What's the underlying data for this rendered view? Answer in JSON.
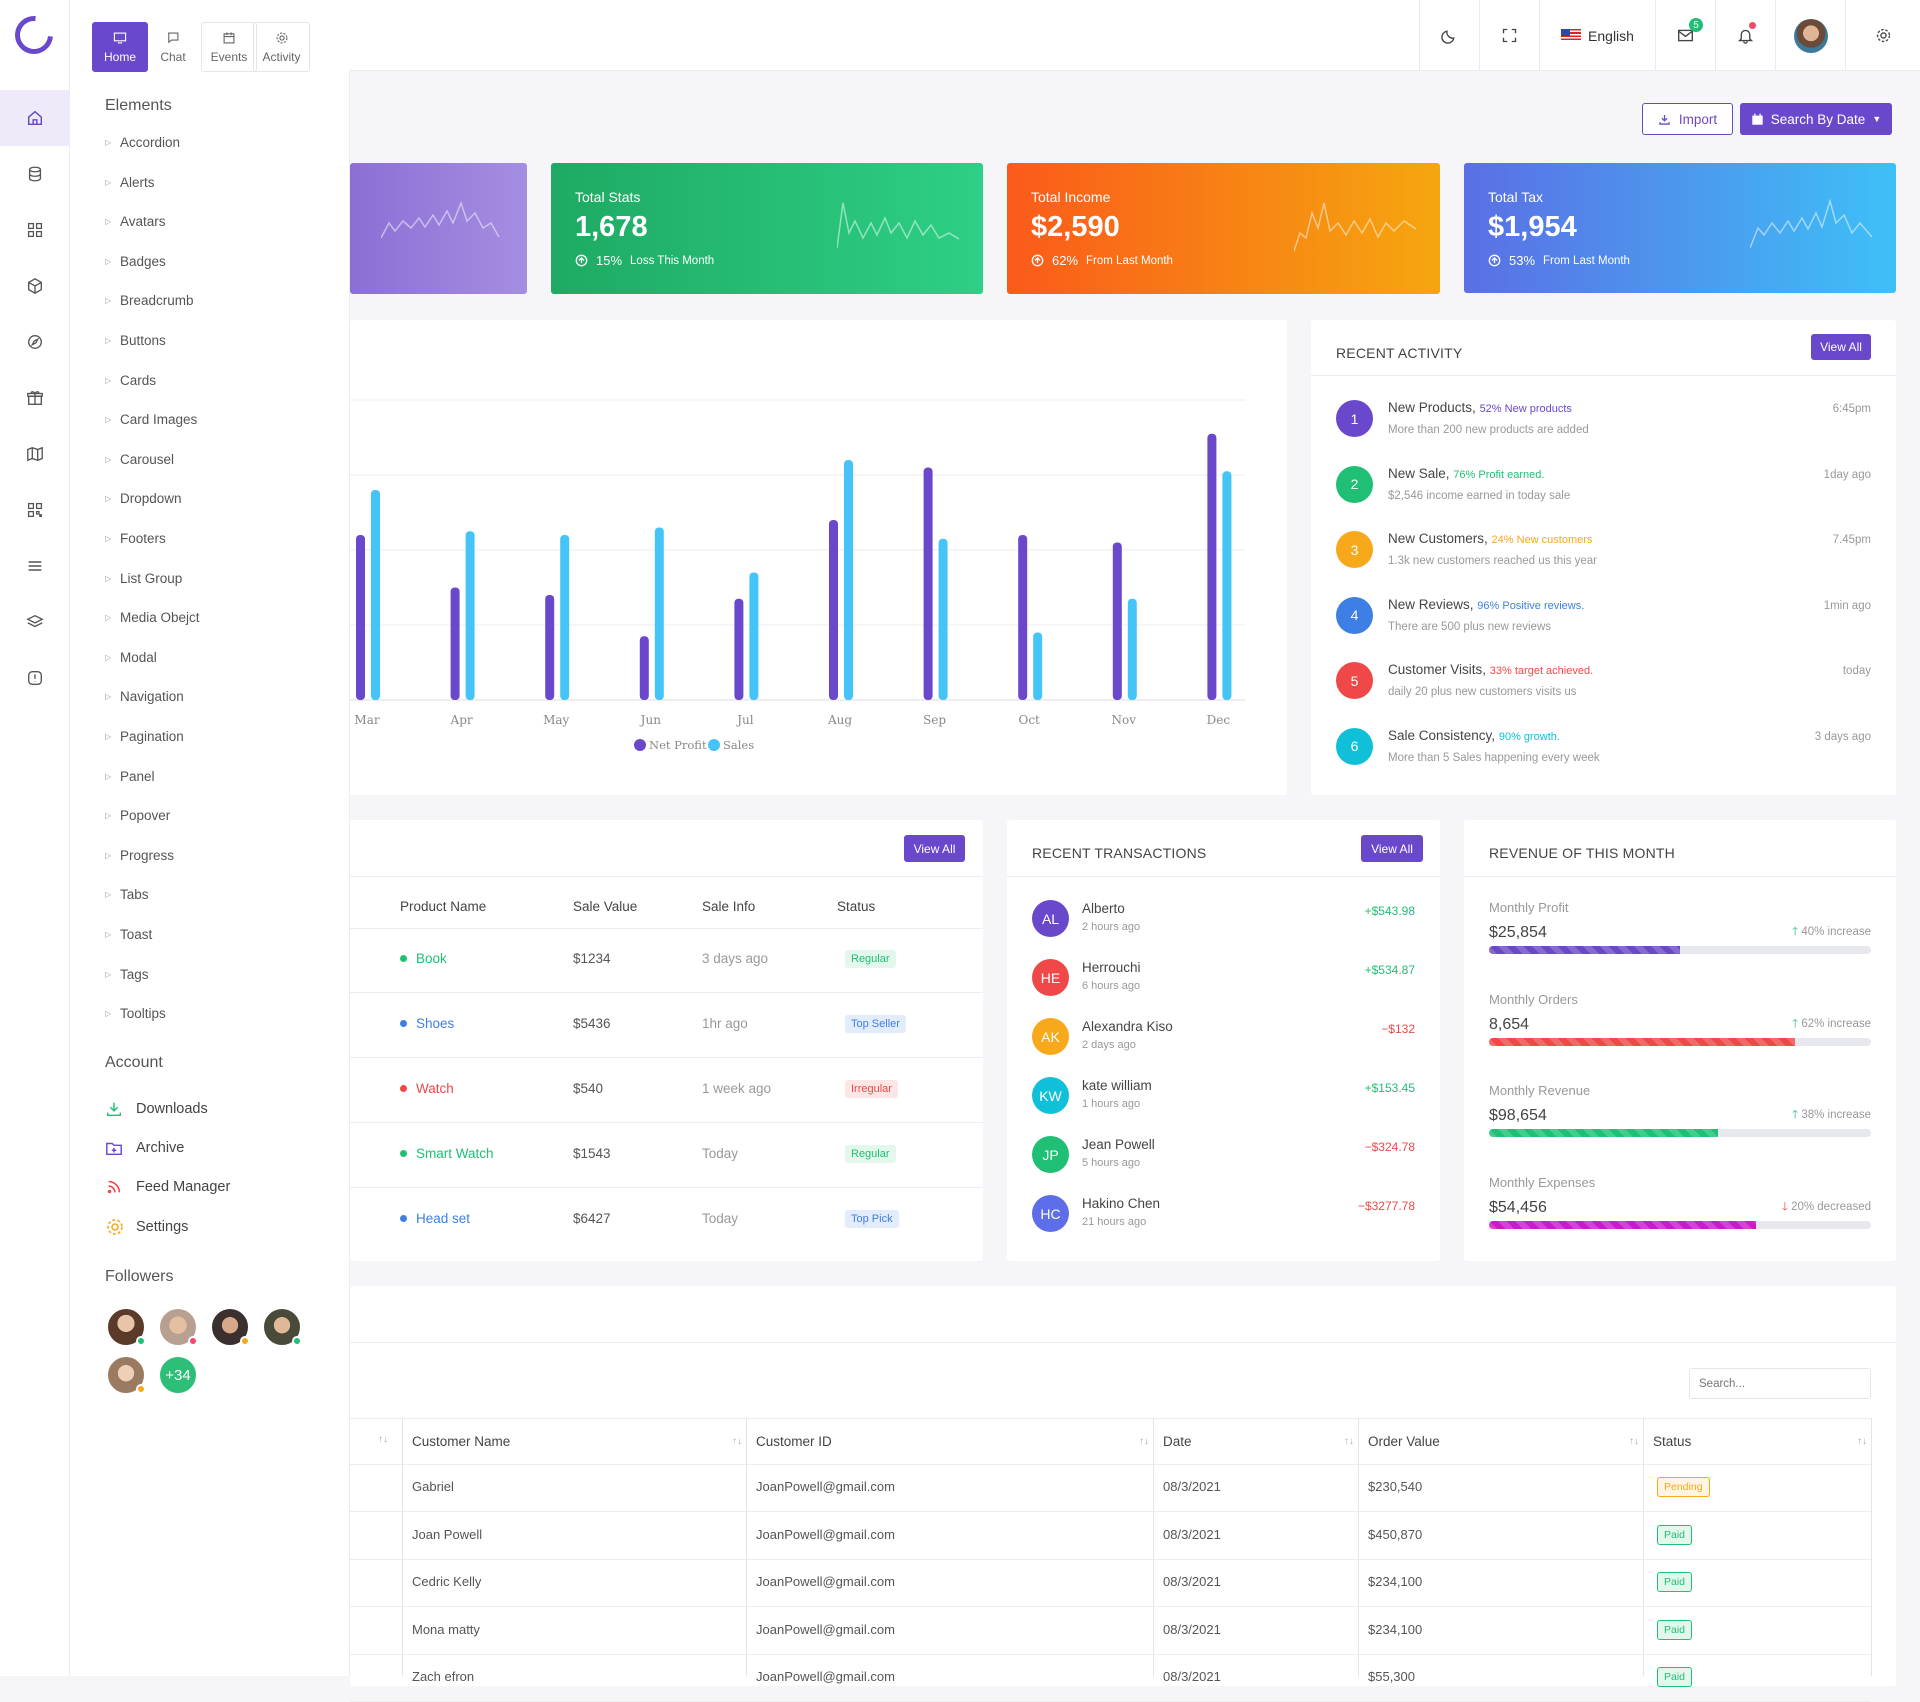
{
  "topbar": {
    "language": "English",
    "mail_count": "5"
  },
  "sidebar": {
    "tabs": [
      {
        "label": "Home"
      },
      {
        "label": "Chat"
      },
      {
        "label": "Events"
      },
      {
        "label": "Activity"
      }
    ],
    "elements_title": "Elements",
    "elements": [
      "Accordion",
      "Alerts",
      "Avatars",
      "Badges",
      "Breadcrumb",
      "Buttons",
      "Cards",
      "Card Images",
      "Carousel",
      "Dropdown",
      "Footers",
      "List Group",
      "Media Obejct",
      "Modal",
      "Navigation",
      "Pagination",
      "Panel",
      "Popover",
      "Progress",
      "Tabs",
      "Toast",
      "Tags",
      "Tooltips"
    ],
    "account_title": "Account",
    "account": [
      "Downloads",
      "Archive",
      "Feed Manager",
      "Settings"
    ],
    "followers_title": "Followers",
    "followers_more": "+34"
  },
  "actions": {
    "import": "Import",
    "search_by_date": "Search By Date"
  },
  "stats": [
    {
      "title": "Total Stats",
      "value": "1,678",
      "pct": "15%",
      "note": "Loss This Month"
    },
    {
      "title": "Total Income",
      "value": "$2,590",
      "pct": "62%",
      "note": "From Last Month"
    },
    {
      "title": "Total Tax",
      "value": "$1,954",
      "pct": "53%",
      "note": "From Last Month"
    }
  ],
  "chart_data": {
    "type": "bar",
    "categories": [
      "Mar",
      "Apr",
      "May",
      "Jun",
      "Jul",
      "Aug",
      "Sep",
      "Oct",
      "Nov",
      "Dec"
    ],
    "series": [
      {
        "name": "Net Profit",
        "values": [
          44,
          30,
          28,
          17,
          27,
          48,
          62,
          44,
          42,
          71
        ]
      },
      {
        "name": "Sales",
        "values": [
          56,
          45,
          44,
          46,
          34,
          64,
          43,
          18,
          27,
          61
        ]
      }
    ],
    "ylim": [
      0,
      80
    ],
    "grid": true,
    "legend": "bottom"
  },
  "recent_activity": {
    "title": "RECENT ACTIVITY",
    "view_all": "View All",
    "items": [
      {
        "n": "1",
        "title": "New Products,",
        "tag": "52% New products",
        "desc": "More than 200 new products are added",
        "time": "6:45pm",
        "color": "#6a48cc"
      },
      {
        "n": "2",
        "title": "New Sale,",
        "tag": "76% Profit earned.",
        "desc": "$2,546 income earned in today sale",
        "time": "1day ago",
        "color": "#1fbf75"
      },
      {
        "n": "3",
        "title": "New Customers,",
        "tag": "24% New customers",
        "desc": "1.3k new customers reached us this year",
        "time": "7.45pm",
        "color": "#f7a81b"
      },
      {
        "n": "4",
        "title": "New Reviews,",
        "tag": "96% Positive reviews.",
        "desc": "There are 500 plus new reviews",
        "time": "1min ago",
        "color": "#3d7fe4"
      },
      {
        "n": "5",
        "title": "Customer Visits,",
        "tag": "33% target achieved.",
        "desc": "daily 20 plus new customers visits us",
        "time": "today",
        "color": "#f04848"
      },
      {
        "n": "6",
        "title": "Sale Consistency,",
        "tag": "90% growth.",
        "desc": "More than 5 Sales happening every week",
        "time": "3 days ago",
        "color": "#0fc0d8"
      }
    ]
  },
  "products": {
    "view_all": "View All",
    "headers": [
      "Product Name",
      "Sale Value",
      "Sale Info",
      "Status"
    ],
    "rows": [
      {
        "name": "Book",
        "value": "$1234",
        "info": "3 days ago",
        "status": "Regular",
        "color": "#1fbf75"
      },
      {
        "name": "Shoes",
        "value": "$5436",
        "info": "1hr ago",
        "status": "Top Seller",
        "color": "#3d7fe4"
      },
      {
        "name": "Watch",
        "value": "$540",
        "info": "1 week ago",
        "status": "Irregular",
        "color": "#f04848"
      },
      {
        "name": "Smart Watch",
        "value": "$1543",
        "info": "Today",
        "status": "Regular",
        "color": "#1fbf75"
      },
      {
        "name": "Head set",
        "value": "$6427",
        "info": "Today",
        "status": "Top Pick",
        "color": "#3d7fe4"
      }
    ]
  },
  "transactions": {
    "title": "RECENT TRANSACTIONS",
    "view_all": "View All",
    "items": [
      {
        "initials": "AL",
        "name": "Alberto",
        "time": "2 hours ago",
        "amount": "+$543.98",
        "color": "#6a48cc",
        "pos": true
      },
      {
        "initials": "HE",
        "name": "Herrouchi",
        "time": "6 hours ago",
        "amount": "+$534.87",
        "color": "#f04848",
        "pos": true
      },
      {
        "initials": "AK",
        "name": "Alexandra Kiso",
        "time": "2 days ago",
        "amount": "−$132",
        "color": "#f7a81b",
        "pos": false
      },
      {
        "initials": "KW",
        "name": "kate william",
        "time": "1 hours ago",
        "amount": "+$153.45",
        "color": "#0fc0d8",
        "pos": true
      },
      {
        "initials": "JP",
        "name": "Jean Powell",
        "time": "5 hours ago",
        "amount": "−$324.78",
        "color": "#1fbf75",
        "pos": false
      },
      {
        "initials": "HC",
        "name": "Hakino Chen",
        "time": "21 hours ago",
        "amount": "−$3277.78",
        "color": "#5e6ee8",
        "pos": false
      }
    ]
  },
  "revenue": {
    "title": "REVENUE OF THIS MONTH",
    "items": [
      {
        "label": "Monthly Profit",
        "value": "$25,854",
        "change": "40% increase",
        "up": true,
        "progress": 0.5,
        "color": "#6a48cc"
      },
      {
        "label": "Monthly Orders",
        "value": "8,654",
        "change": "62% increase",
        "up": true,
        "progress": 0.8,
        "color": "#f04848"
      },
      {
        "label": "Monthly Revenue",
        "value": "$98,654",
        "change": "38% increase",
        "up": true,
        "progress": 0.6,
        "color": "#1fbf75"
      },
      {
        "label": "Monthly Expenses",
        "value": "$54,456",
        "change": "20% decreased",
        "up": false,
        "progress": 0.7,
        "color": "#c81cc5"
      }
    ]
  },
  "orders": {
    "search_placeholder": "Search...",
    "headers": [
      "Customer Name",
      "Customer ID",
      "Date",
      "Order Value",
      "Status"
    ],
    "rows": [
      {
        "name": "Gabriel",
        "id": "JoanPowell@gmail.com",
        "date": "08/3/2021",
        "value": "$230,540",
        "status": "Pending"
      },
      {
        "name": "Joan Powell",
        "id": "JoanPowell@gmail.com",
        "date": "08/3/2021",
        "value": "$450,870",
        "status": "Paid"
      },
      {
        "name": "Cedric Kelly",
        "id": "JoanPowell@gmail.com",
        "date": "08/3/2021",
        "value": "$234,100",
        "status": "Paid"
      },
      {
        "name": "Mona matty",
        "id": "JoanPowell@gmail.com",
        "date": "08/3/2021",
        "value": "$234,100",
        "status": "Paid"
      },
      {
        "name": "Zach efron",
        "id": "JoanPowell@gmail.com",
        "date": "08/3/2021",
        "value": "$55,300",
        "status": "Paid"
      }
    ]
  }
}
